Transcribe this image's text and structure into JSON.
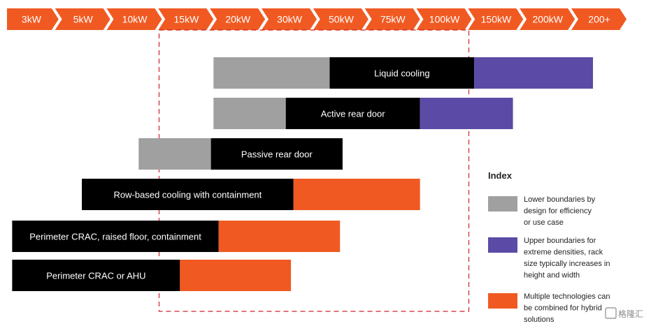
{
  "chart_data": {
    "type": "bar",
    "scale_labels": [
      "3kW",
      "5kW",
      "10kW",
      "15kW",
      "20kW",
      "30kW",
      "50kW",
      "75kW",
      "100kW",
      "150kW",
      "200kW",
      "200+"
    ],
    "highlight_range": [
      "15kW",
      "150kW"
    ],
    "bars": [
      {
        "label": "Liquid cooling",
        "lower_start": 4.0,
        "lower_end": 6.25,
        "core_start": 6.25,
        "core_end": 9.05,
        "ext_type": "upper",
        "ext_end": 11.35
      },
      {
        "label": "Active rear door",
        "lower_start": 4.0,
        "lower_end": 5.4,
        "core_start": 5.4,
        "core_end": 8.0,
        "ext_type": "upper",
        "ext_end": 9.8
      },
      {
        "label": "Passive rear door",
        "lower_start": 2.55,
        "lower_end": 3.95,
        "core_start": 3.95,
        "core_end": 6.5,
        "ext_type": null,
        "ext_end": null
      },
      {
        "label": "Row-based cooling with containment",
        "lower_start": null,
        "lower_end": null,
        "core_start": 1.45,
        "core_end": 5.55,
        "ext_type": "hybrid",
        "ext_end": 8.0
      },
      {
        "label": "Perimeter CRAC, raised floor, containment",
        "lower_start": null,
        "lower_end": null,
        "core_start": 0.1,
        "core_end": 4.1,
        "ext_type": "hybrid",
        "ext_end": 6.45
      },
      {
        "label": "Perimeter CRAC or AHU",
        "lower_start": null,
        "lower_end": null,
        "core_start": 0.1,
        "core_end": 3.35,
        "ext_type": "hybrid",
        "ext_end": 5.5
      }
    ]
  },
  "colors": {
    "ribbon": "#f05a22",
    "lower": "#a0a0a0",
    "core": "#000000",
    "upper": "#5b4ba6",
    "hybrid": "#f05a22",
    "dashed": "#d0202a"
  },
  "index": {
    "title": "Index",
    "items": [
      {
        "key": "lower",
        "lines": [
          "Lower boundaries by",
          "design for efficiency",
          "or use case"
        ]
      },
      {
        "key": "upper",
        "lines": [
          "Upper boundaries for",
          "extreme densities, rack",
          "size typically increases in",
          "height and width"
        ]
      },
      {
        "key": "hybrid",
        "lines": [
          "Multiple technologies can",
          "be combined for hybrid",
          "solutions"
        ]
      }
    ]
  },
  "watermark": "格隆汇"
}
